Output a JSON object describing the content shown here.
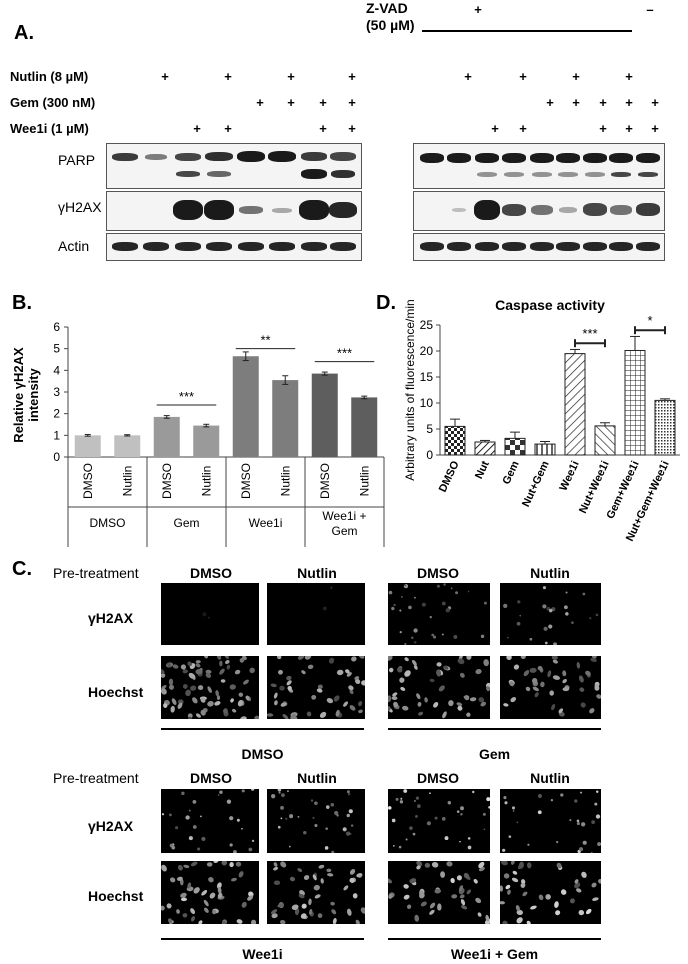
{
  "panel_a": {
    "letter": "A.",
    "zvad_label": "Z-VAD",
    "zvad_conc": "(50 µM)",
    "zvad_plus": "+",
    "zvad_minus": "–",
    "treatments": [
      "Nutlin (8 µM)",
      "Gem (300 nM)",
      "Wee1i (1 µM)"
    ],
    "plus_sign": "+",
    "blot_labels": [
      "PARP",
      "γH2AX",
      "Actin"
    ]
  },
  "panel_b": {
    "letter": "B.",
    "ylabel_line1": "Relative γH2AX",
    "ylabel_line2": "intensity",
    "sig": [
      "***",
      "**",
      "***"
    ]
  },
  "panel_d": {
    "letter": "D.",
    "title": "Caspase activity",
    "ylabel": "Arbitrary units of fluorescence/min",
    "sig": [
      "***",
      "*"
    ]
  },
  "panel_c": {
    "letter": "C.",
    "pretreatment": "Pre-treatment",
    "top_cols": [
      "DMSO",
      "Nutlin",
      "DMSO",
      "Nutlin"
    ],
    "bottom_cols": [
      "DMSO",
      "Nutlin",
      "DMSO",
      "Nutlin"
    ],
    "rows": [
      "γH2AX",
      "Hoechst"
    ],
    "top_groups": [
      "DMSO",
      "Gem"
    ],
    "bottom_groups": [
      "Wee1i",
      "Wee1i + Gem"
    ]
  },
  "chart_data": [
    {
      "type": "bar",
      "title": "",
      "ylabel": "Relative γH2AX intensity",
      "categories": [
        "DMSO",
        "Nutlin",
        "DMSO",
        "Nutlin",
        "DMSO",
        "Nutlin",
        "DMSO",
        "Nutlin"
      ],
      "groups": [
        "DMSO",
        "Gem",
        "Wee1i",
        "Wee1i + Gem"
      ],
      "values": [
        1.0,
        1.0,
        1.85,
        1.45,
        4.65,
        3.55,
        3.85,
        2.75
      ],
      "errors": [
        0.04,
        0.03,
        0.06,
        0.06,
        0.2,
        0.2,
        0.07,
        0.06
      ],
      "colors": [
        "#c0c0c0",
        "#c0c0c0",
        "#9a9a9a",
        "#9a9a9a",
        "#7d7d7d",
        "#7d7d7d",
        "#5e5e5e",
        "#5e5e5e"
      ],
      "ylim": [
        0,
        6
      ],
      "yticks": [
        0,
        1,
        2,
        3,
        4,
        5,
        6
      ]
    },
    {
      "type": "bar",
      "title": "Caspase activity",
      "ylabel": "Arbitrary units of fluorescence/min",
      "categories": [
        "DMSO",
        "Nut",
        "Gem",
        "Nut+Gem",
        "Wee1i",
        "Nut+Wee1i",
        "Gem+Wee1i",
        "Nut+Gem+Wee1i"
      ],
      "values": [
        5.5,
        2.5,
        3.2,
        2.1,
        19.5,
        5.6,
        20.1,
        10.5
      ],
      "errors": [
        1.4,
        0.3,
        1.2,
        0.5,
        0.8,
        0.6,
        2.7,
        0.3
      ],
      "ylim": [
        0,
        25
      ],
      "yticks": [
        0,
        5,
        10,
        15,
        20,
        25
      ]
    }
  ]
}
